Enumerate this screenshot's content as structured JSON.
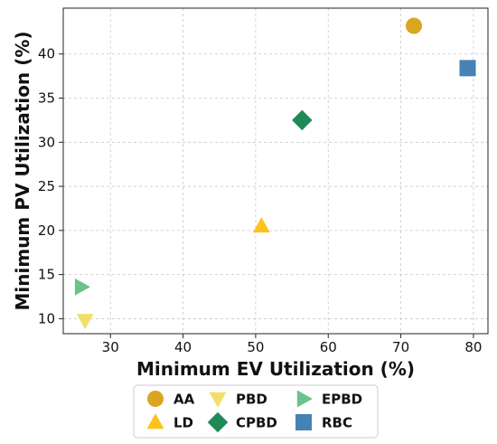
{
  "chart_data": {
    "type": "scatter",
    "xlabel": "Minimum EV Utilization (%)",
    "ylabel": "Minimum PV Utilization (%)",
    "xlim": [
      23.5,
      82
    ],
    "ylim": [
      8.3,
      45.2
    ],
    "xticks": [
      30,
      40,
      50,
      60,
      70,
      80
    ],
    "yticks": [
      10,
      15,
      20,
      25,
      30,
      35,
      40
    ],
    "grid": true,
    "legend_position": "bottom-center",
    "series": [
      {
        "name": "AA",
        "marker": "circle",
        "color": "#DAA520",
        "x": 71.8,
        "y": 43.2
      },
      {
        "name": "LD",
        "marker": "triangle-up",
        "color": "#FFC21A",
        "x": 50.8,
        "y": 20.5
      },
      {
        "name": "PBD",
        "marker": "triangle-down",
        "color": "#F2DF6B",
        "x": 26.5,
        "y": 9.8
      },
      {
        "name": "CPBD",
        "marker": "diamond",
        "color": "#1F8A58",
        "x": 56.4,
        "y": 32.5
      },
      {
        "name": "EPBD",
        "marker": "triangle-right",
        "color": "#6CC38A",
        "x": 26.0,
        "y": 13.6
      },
      {
        "name": "RBC",
        "marker": "square",
        "color": "#4682B4",
        "x": 79.2,
        "y": 38.4
      }
    ]
  }
}
